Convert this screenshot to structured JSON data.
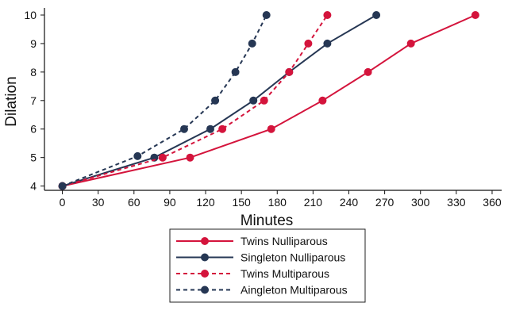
{
  "chart_data": {
    "type": "line",
    "xlabel": "Minutes",
    "ylabel": "Dilation",
    "xlim": [
      -15,
      368
    ],
    "ylim": [
      3.85,
      10.25
    ],
    "xticks": [
      0,
      30,
      60,
      90,
      120,
      150,
      180,
      210,
      240,
      270,
      300,
      330,
      360
    ],
    "yticks": [
      4,
      5,
      6,
      7,
      8,
      9,
      10
    ],
    "grid": false,
    "legend_position": "bottom-center",
    "series": [
      {
        "name": "Twins Nulliparous",
        "color": "#d4143c",
        "dash": "solid",
        "points": [
          [
            0,
            4
          ],
          [
            107,
            5
          ],
          [
            175,
            6
          ],
          [
            218,
            7
          ],
          [
            256,
            8
          ],
          [
            292,
            9
          ],
          [
            346,
            10
          ]
        ]
      },
      {
        "name": "Singleton Nulliparous",
        "color": "#263754",
        "dash": "solid",
        "points": [
          [
            0,
            4
          ],
          [
            77,
            5
          ],
          [
            124,
            6
          ],
          [
            160,
            7
          ],
          [
            190,
            8
          ],
          [
            222,
            9
          ],
          [
            263,
            10
          ]
        ]
      },
      {
        "name": "Twins Multiparous",
        "color": "#d4143c",
        "dash": "dashed",
        "points": [
          [
            0,
            4
          ],
          [
            84,
            5
          ],
          [
            134,
            6
          ],
          [
            169,
            7
          ],
          [
            190,
            8
          ],
          [
            206,
            9
          ],
          [
            222,
            10
          ]
        ]
      },
      {
        "name": "Aingleton Multiparous",
        "color": "#263754",
        "dash": "dashed",
        "points": [
          [
            0,
            4
          ],
          [
            63,
            5.05
          ],
          [
            102,
            6
          ],
          [
            128,
            7
          ],
          [
            145,
            8
          ],
          [
            159,
            9
          ],
          [
            171,
            10
          ]
        ]
      }
    ]
  }
}
